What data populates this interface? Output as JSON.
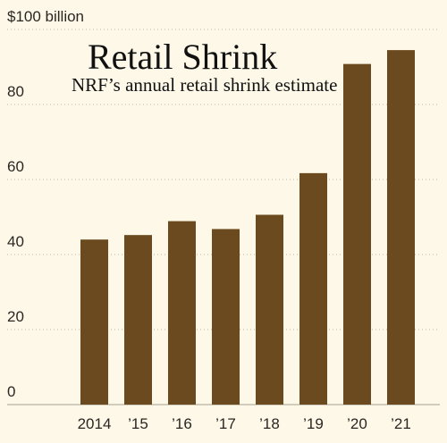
{
  "colors": {
    "background": "#fdf8e7",
    "bar": "#6b4a1f"
  },
  "chart_data": {
    "type": "bar",
    "title": "Retail Shrink",
    "subtitle": "NRF’s annual retail shrink estimate",
    "ylabel": "$100 billion",
    "categories": [
      "2014",
      "’15",
      "’16",
      "’17",
      "’18",
      "’19",
      "’20",
      "’21"
    ],
    "values": [
      44.0,
      45.2,
      48.9,
      46.8,
      50.6,
      61.7,
      90.8,
      94.5
    ],
    "ylim": [
      0,
      100
    ],
    "yticks": [
      {
        "value": 0,
        "label": "0"
      },
      {
        "value": 20,
        "label": "20"
      },
      {
        "value": 40,
        "label": "40"
      },
      {
        "value": 60,
        "label": "60"
      },
      {
        "value": 80,
        "label": "80"
      },
      {
        "value": 100,
        "label": "$100 billion"
      }
    ],
    "grid": true,
    "legend": "none"
  }
}
